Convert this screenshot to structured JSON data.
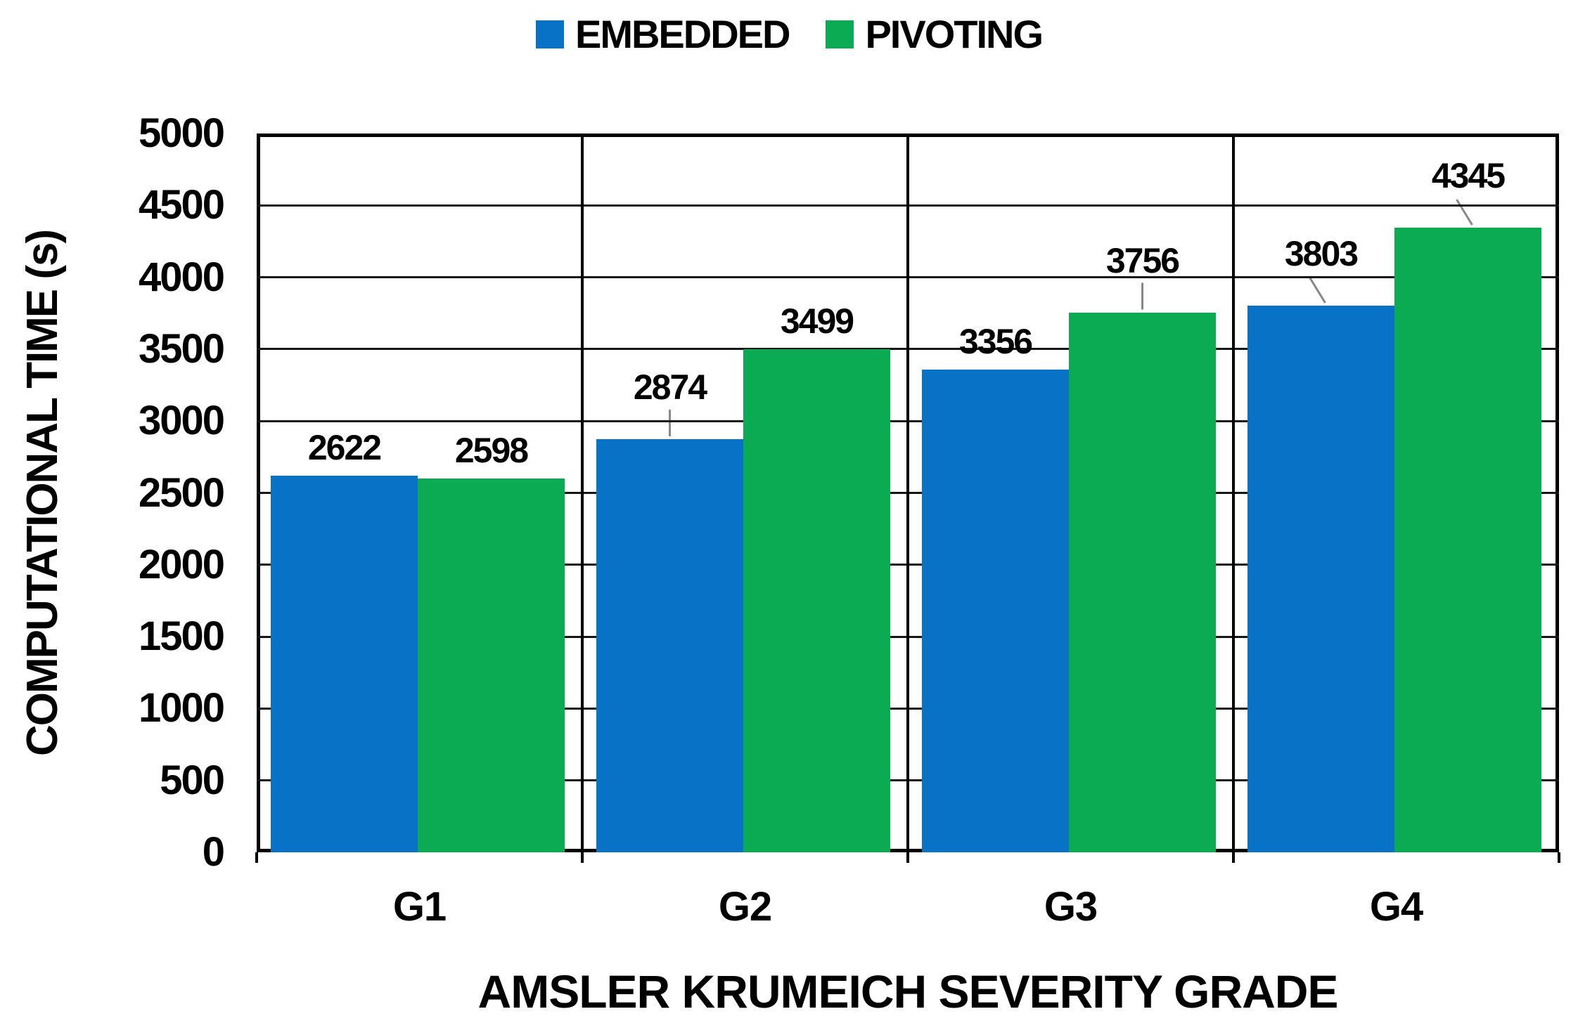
{
  "chart_data": {
    "type": "bar",
    "title": "",
    "xlabel": "AMSLER KRUMEICH SEVERITY GRADE",
    "ylabel": "COMPUTATIONAL TIME (s)",
    "categories": [
      "G1",
      "G2",
      "G3",
      "G4"
    ],
    "series": [
      {
        "name": "EMBEDDED",
        "color": "#0872c6",
        "values": [
          2622,
          2874,
          3356,
          3803
        ],
        "label_leaders": [
          "none",
          "vertical",
          "none",
          "slant"
        ]
      },
      {
        "name": "PIVOTING",
        "color": "#0aab53",
        "values": [
          2598,
          3499,
          3756,
          4345
        ],
        "label_leaders": [
          "none",
          "none",
          "vertical",
          "slant"
        ]
      }
    ],
    "ylim": [
      0,
      5000
    ],
    "yticks": [
      0,
      500,
      1000,
      1500,
      2000,
      2500,
      3000,
      3500,
      4000,
      4500,
      5000
    ],
    "grid": "horizontal",
    "pane_dividers": true,
    "legend_position": "top",
    "colors": {
      "axis": "#000000",
      "gridline": "#161616",
      "leader_line": "#888888",
      "text": "#000000",
      "background": "#ffffff"
    }
  }
}
